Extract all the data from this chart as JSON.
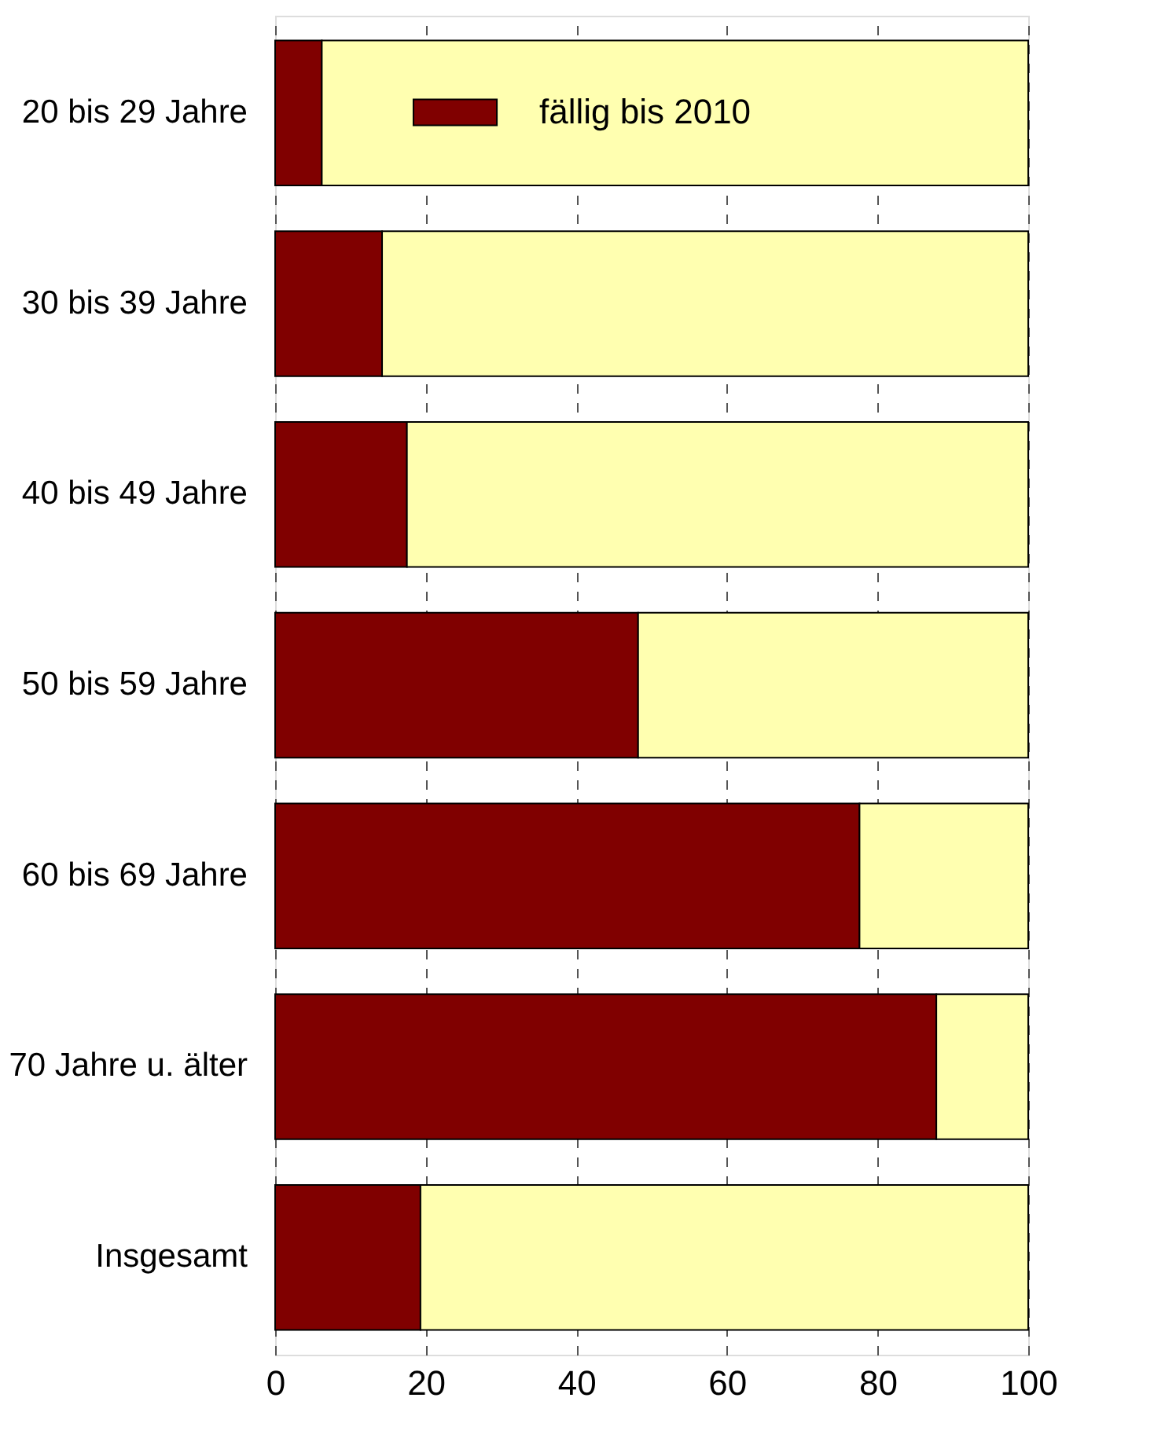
{
  "chart_data": {
    "type": "bar",
    "orientation": "horizontal",
    "stacked": true,
    "categories": [
      "20 bis 29 Jahre",
      "30 bis 39 Jahre",
      "40 bis 49 Jahre",
      "50 bis 59 Jahre",
      "60 bis 69 Jahre",
      "70 Jahre u. älter",
      "Insgesamt"
    ],
    "series": [
      {
        "name": "fällig bis 2010",
        "color": "#800000",
        "values": [
          6.2,
          14.2,
          17.5,
          48.2,
          77.6,
          87.8,
          19.3
        ]
      },
      {
        "color": "#ffffb0",
        "values": [
          93.8,
          85.8,
          82.5,
          51.8,
          22.4,
          12.2,
          80.7
        ]
      }
    ],
    "xlim": [
      0,
      100
    ],
    "xticks": [
      0,
      20,
      40,
      60,
      80,
      100
    ],
    "grid": "x",
    "legend": "top"
  }
}
